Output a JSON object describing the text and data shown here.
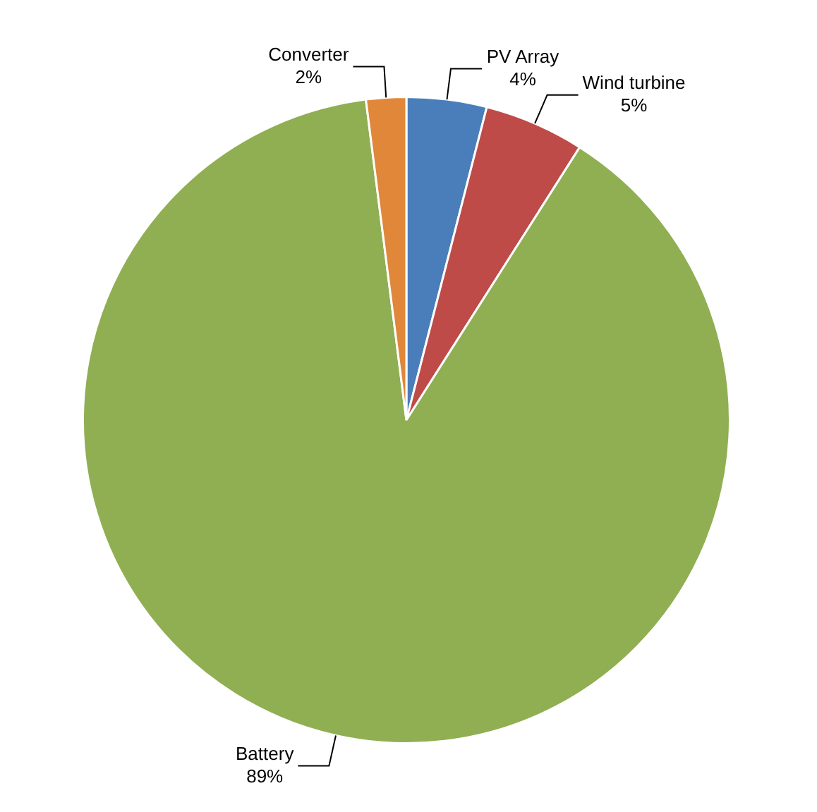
{
  "chart_data": {
    "type": "pie",
    "categories": [
      "PV Array",
      "Wind turbine",
      "Battery",
      "Converter"
    ],
    "values": [
      4,
      5,
      89,
      2
    ],
    "colors": [
      "#4a7ebb",
      "#be4b48",
      "#8faf52",
      "#e0873a"
    ],
    "value_labels": [
      "4%",
      "5%",
      "89%",
      "2%"
    ],
    "legend": false
  }
}
